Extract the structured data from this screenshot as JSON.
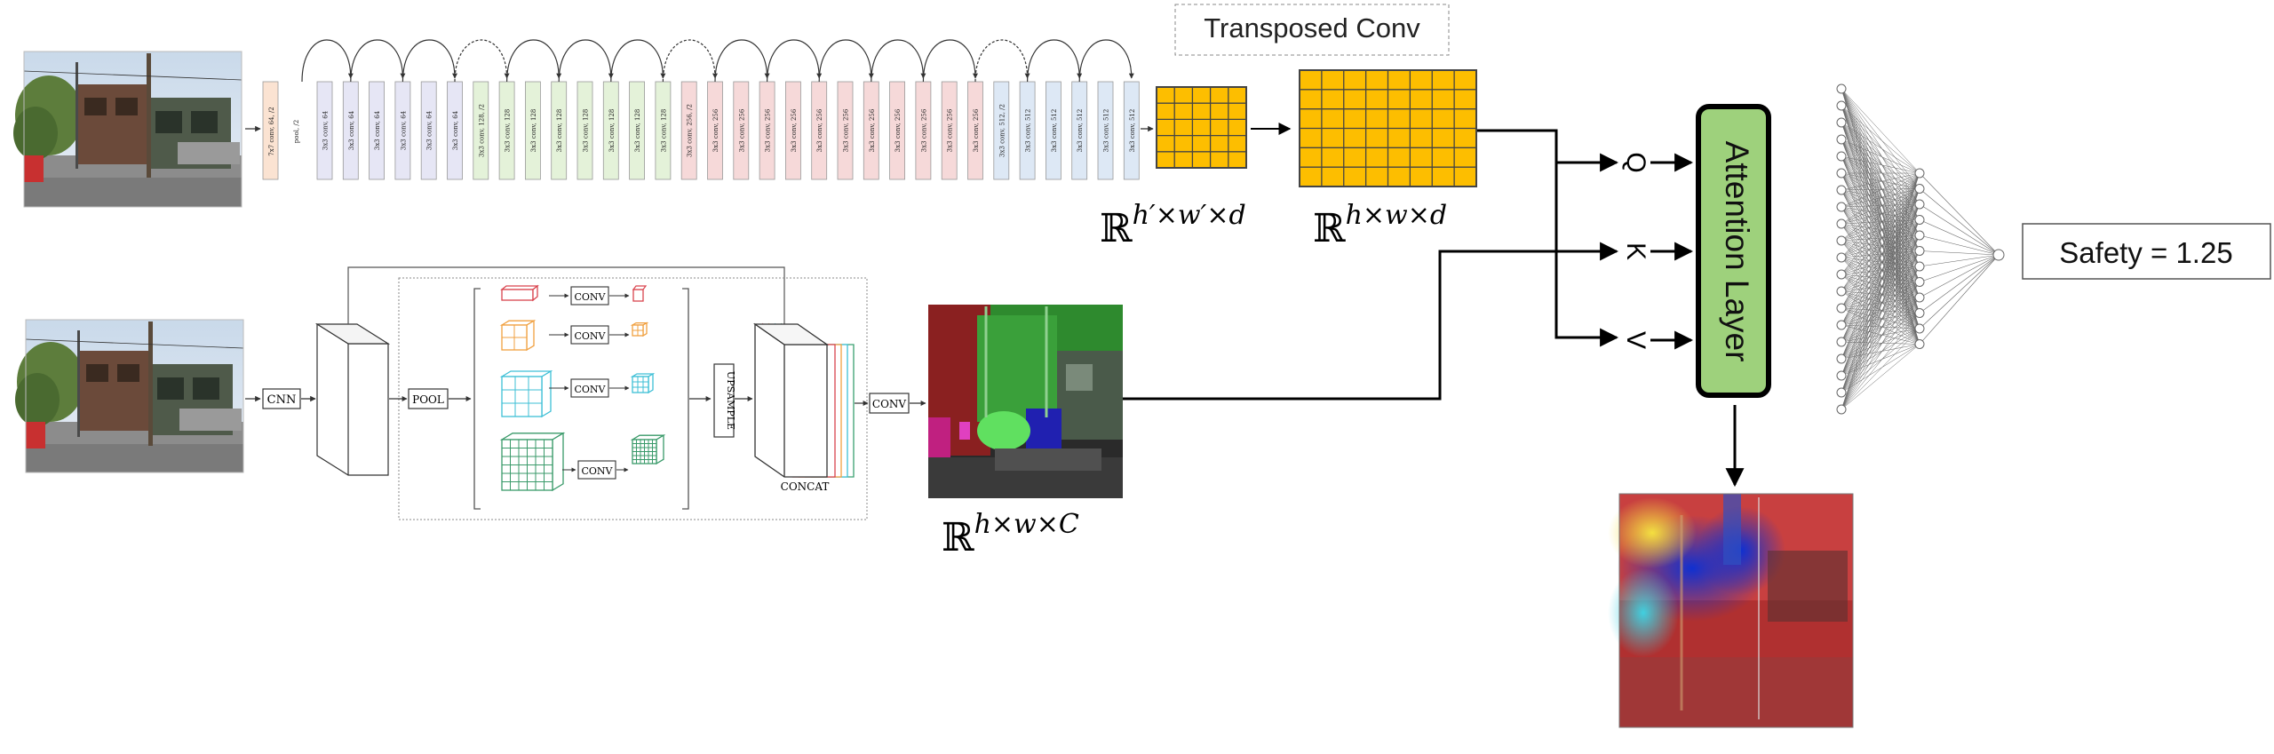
{
  "resnet": {
    "first_layer": "7x7 conv, 64, /2",
    "pool": "pool, /2",
    "layers": [
      "3x3 conv, 64",
      "3x3 conv, 64",
      "3x3 conv, 64",
      "3x3 conv, 64",
      "3x3 conv, 64",
      "3x3 conv, 64",
      "3x3 conv, 128, /2",
      "3x3 conv, 128",
      "3x3 conv, 128",
      "3x3 conv, 128",
      "3x3 conv, 128",
      "3x3 conv, 128",
      "3x3 conv, 128",
      "3x3 conv, 128",
      "3x3 conv, 256, /2",
      "3x3 conv, 256",
      "3x3 conv, 256",
      "3x3 conv, 256",
      "3x3 conv, 256",
      "3x3 conv, 256",
      "3x3 conv, 256",
      "3x3 conv, 256",
      "3x3 conv, 256",
      "3x3 conv, 256",
      "3x3 conv, 256",
      "3x3 conv, 256",
      "3x3 conv, 512, /2",
      "3x3 conv, 512",
      "3x3 conv, 512",
      "3x3 conv, 512",
      "3x3 conv, 512",
      "3x3 conv, 512"
    ]
  },
  "transposed_conv_label": "Transposed Conv",
  "small_grid_label": {
    "main": "ℝ",
    "sup": "h′×w′×d"
  },
  "large_grid_label": {
    "main": "ℝ",
    "sup": "h×w×d"
  },
  "seg_label": {
    "main": "ℝ",
    "sup": "h×w×C"
  },
  "pspnet": {
    "cnn": "CNN",
    "pool": "POOL",
    "conv": "CONV",
    "upsample": "UPSAMPLE",
    "concat": "CONCAT",
    "final_conv": "CONV"
  },
  "qkv": [
    "Q",
    "K",
    "V"
  ],
  "attention_label": "Attention Layer",
  "safety_label": "Safety = 1.25",
  "colors": {
    "feature_grid": "#FDBE00",
    "attention_box": "#9ED17C",
    "layer_64": "#E6E6F5",
    "layer_128": "#E4F2D9",
    "layer_256": "#F6D9D9",
    "layer_512": "#DDE8F5",
    "layer_first": "#FBE3D2",
    "pyr_red": "#D9444E",
    "pyr_orange": "#F0A040",
    "pyr_cyan": "#3DBFD6",
    "pyr_green": "#3A9A6A"
  }
}
